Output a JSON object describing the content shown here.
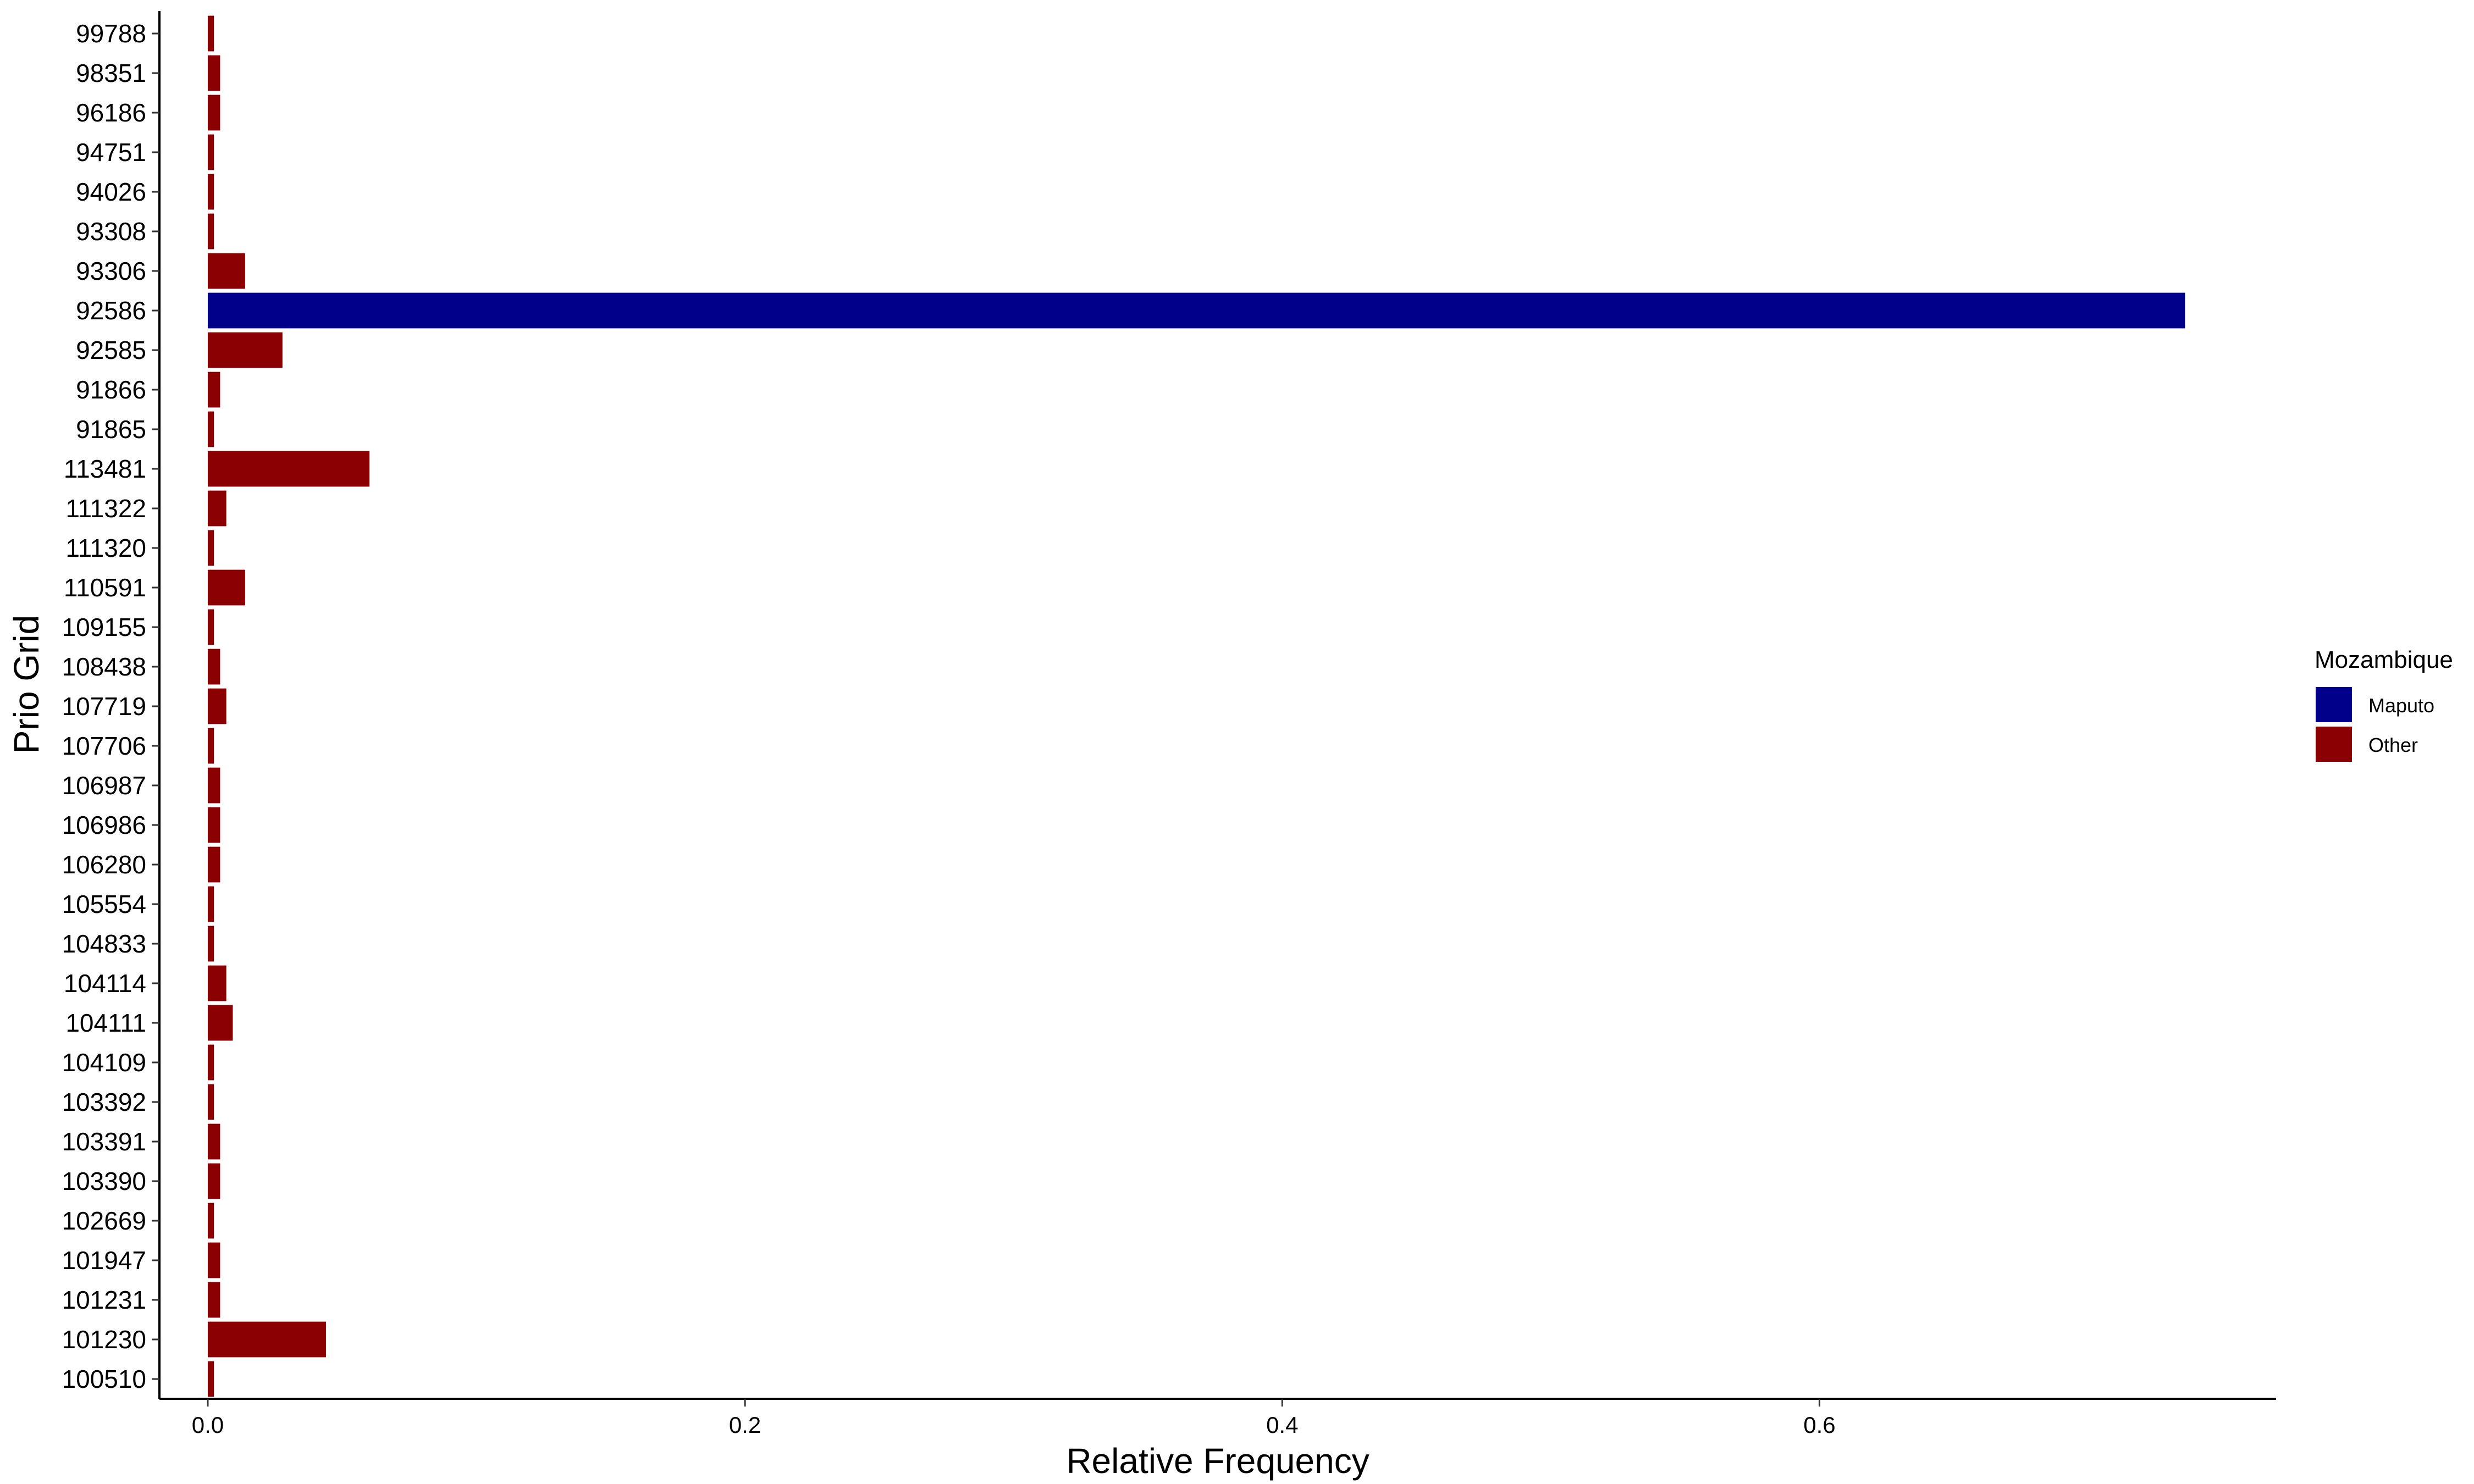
{
  "chart_data": {
    "type": "bar",
    "orientation": "horizontal",
    "xlabel": "Relative Frequency",
    "ylabel": "Prio Grid",
    "xlim": [
      -0.018,
      0.77
    ],
    "xticks": [
      0.0,
      0.2,
      0.4,
      0.6
    ],
    "xtick_labels": [
      "0.0",
      "0.2",
      "0.4",
      "0.6"
    ],
    "grid": false,
    "legend": {
      "title": "Mozambique",
      "position": "right",
      "entries": [
        {
          "name": "Maputo",
          "color": "#00008B"
        },
        {
          "name": "Other",
          "color": "#8B0000"
        }
      ]
    },
    "categories": [
      "99788",
      "98351",
      "96186",
      "94751",
      "94026",
      "93308",
      "93306",
      "92586",
      "92585",
      "91866",
      "91865",
      "113481",
      "111322",
      "111320",
      "110591",
      "109155",
      "108438",
      "107719",
      "107706",
      "106987",
      "106986",
      "106280",
      "105554",
      "104833",
      "104114",
      "104111",
      "104109",
      "103392",
      "103391",
      "103390",
      "102669",
      "101947",
      "101231",
      "101230",
      "100510"
    ],
    "values": [
      0.0023,
      0.0046,
      0.0046,
      0.0023,
      0.0023,
      0.0023,
      0.0139,
      0.7361,
      0.0278,
      0.0046,
      0.0023,
      0.0602,
      0.0069,
      0.0023,
      0.0139,
      0.0023,
      0.0046,
      0.0069,
      0.0023,
      0.0046,
      0.0046,
      0.0046,
      0.0023,
      0.0023,
      0.0069,
      0.0093,
      0.0023,
      0.0023,
      0.0046,
      0.0046,
      0.0023,
      0.0046,
      0.0046,
      0.044,
      0.0023
    ],
    "groups": [
      "Other",
      "Other",
      "Other",
      "Other",
      "Other",
      "Other",
      "Other",
      "Maputo",
      "Other",
      "Other",
      "Other",
      "Other",
      "Other",
      "Other",
      "Other",
      "Other",
      "Other",
      "Other",
      "Other",
      "Other",
      "Other",
      "Other",
      "Other",
      "Other",
      "Other",
      "Other",
      "Other",
      "Other",
      "Other",
      "Other",
      "Other",
      "Other",
      "Other",
      "Other",
      "Other"
    ]
  }
}
